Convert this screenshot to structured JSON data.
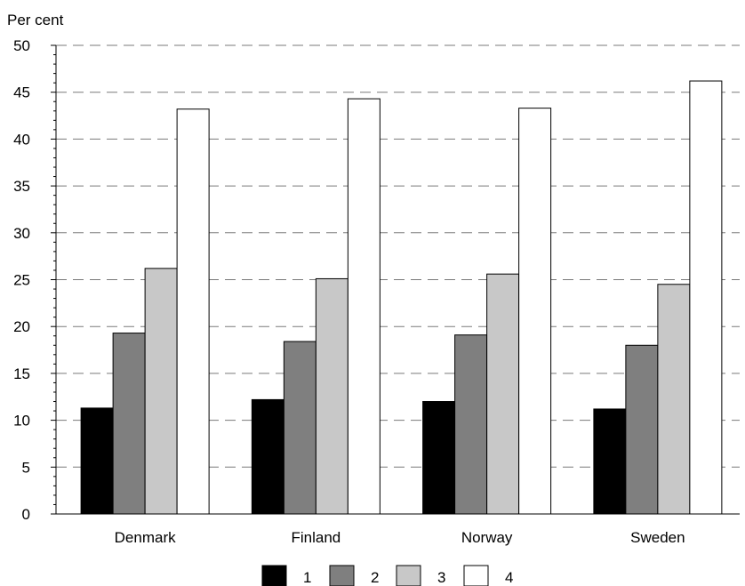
{
  "chart_data": {
    "type": "bar",
    "title": "",
    "ylabel": "Per cent",
    "xlabel": "",
    "ylim": [
      0,
      50
    ],
    "yticks": [
      0,
      5,
      10,
      15,
      20,
      25,
      30,
      35,
      40,
      45,
      50
    ],
    "grid": true,
    "legend_position": "bottom",
    "categories": [
      "Denmark",
      "Finland",
      "Norway",
      "Sweden"
    ],
    "series": [
      {
        "name": "1",
        "color": "#000000",
        "values": [
          11.3,
          12.2,
          12.0,
          11.2
        ]
      },
      {
        "name": "2",
        "color": "#7f7f7f",
        "values": [
          19.3,
          18.4,
          19.1,
          18.0
        ]
      },
      {
        "name": "3",
        "color": "#c8c8c8",
        "values": [
          26.2,
          25.1,
          25.6,
          24.5
        ]
      },
      {
        "name": "4",
        "color": "#ffffff",
        "values": [
          43.2,
          44.3,
          43.3,
          46.2
        ]
      }
    ]
  }
}
